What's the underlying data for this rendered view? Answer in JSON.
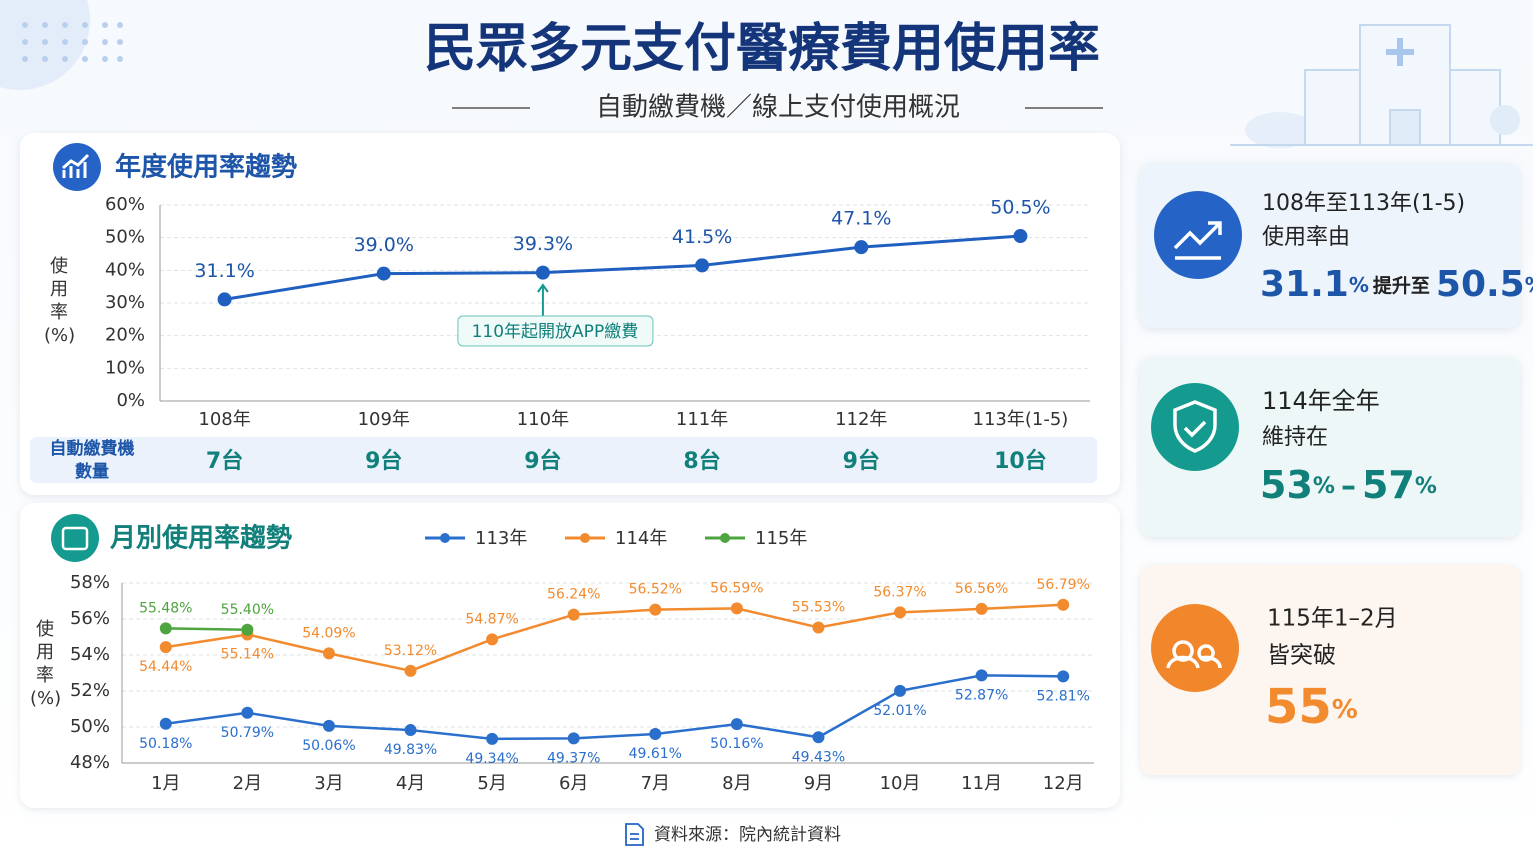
{
  "header": {
    "title": "民眾多元支付醫療費用使用率",
    "subtitle": "自動繳費機／線上支付使用概況"
  },
  "chart_data": [
    {
      "type": "line",
      "title": "年度使用率趨勢",
      "y_label": "使用率(%)",
      "categories": [
        "108年",
        "109年",
        "110年",
        "111年",
        "112年",
        "113年(1-5)"
      ],
      "values": [
        31.1,
        39.0,
        39.3,
        41.5,
        47.1,
        50.5
      ],
      "value_labels": [
        "31.1%",
        "39.0%",
        "39.3%",
        "41.5%",
        "47.1%",
        "50.5%"
      ],
      "color": "#1f5fbf",
      "ylim": [
        0,
        60
      ],
      "yticks": [
        {
          "value": 0,
          "label": "0%"
        },
        {
          "value": 10,
          "label": "10%"
        },
        {
          "value": 20,
          "label": "20%"
        },
        {
          "value": 30,
          "label": "30%"
        },
        {
          "value": 40,
          "label": "40%"
        },
        {
          "value": 50,
          "label": "50%"
        },
        {
          "value": 60,
          "label": "60%"
        }
      ],
      "grid": true,
      "annotation": {
        "text": "110年起開放APP繳費",
        "at": "110年"
      },
      "table": {
        "label_lines": [
          "自動繳費機",
          "數量"
        ],
        "values": [
          "7台",
          "9台",
          "9台",
          "8台",
          "9台",
          "10台"
        ]
      }
    },
    {
      "type": "line",
      "title": "月別使用率趨勢",
      "y_label": "使用率(%)",
      "categories": [
        "1月",
        "2月",
        "3月",
        "4月",
        "5月",
        "6月",
        "7月",
        "8月",
        "9月",
        "10月",
        "11月",
        "12月"
      ],
      "series": [
        {
          "name": "113年",
          "color": "#2b6fcc",
          "values": [
            50.18,
            50.79,
            50.06,
            49.83,
            49.34,
            49.37,
            49.61,
            50.16,
            49.43,
            52.01,
            52.87,
            52.81
          ],
          "value_labels": [
            "50.18%",
            "50.79%",
            "50.06%",
            "49.83%",
            "49.34%",
            "49.37%",
            "49.61%",
            "50.16%",
            "49.43%",
            "52.01%",
            "52.87%",
            "52.81%"
          ]
        },
        {
          "name": "114年",
          "color": "#f28a2e",
          "values": [
            54.44,
            55.14,
            54.09,
            53.12,
            54.87,
            56.24,
            56.52,
            56.59,
            55.53,
            56.37,
            56.56,
            56.79
          ],
          "value_labels": [
            "54.44%",
            "55.14%",
            "54.09%",
            "53.12%",
            "54.87%",
            "56.24%",
            "56.52%",
            "56.59%",
            "55.53%",
            "56.37%",
            "56.56%",
            "56.79%"
          ]
        },
        {
          "name": "115年",
          "color": "#4ea43f",
          "values": [
            55.48,
            55.4,
            null,
            null,
            null,
            null,
            null,
            null,
            null,
            null,
            null,
            null
          ],
          "value_labels": [
            "55.48%",
            "55.40%",
            null,
            null,
            null,
            null,
            null,
            null,
            null,
            null,
            null,
            null
          ]
        }
      ],
      "ylim": [
        48,
        58
      ],
      "yticks": [
        {
          "value": 48,
          "label": "48%"
        },
        {
          "value": 50,
          "label": "50%"
        },
        {
          "value": 52,
          "label": "52%"
        },
        {
          "value": 54,
          "label": "54%"
        },
        {
          "value": 56,
          "label": "56%"
        },
        {
          "value": 58,
          "label": "58%"
        }
      ],
      "grid": true
    }
  ],
  "cards": [
    {
      "lines": [
        "108年至113年(1-5)",
        "使用率由"
      ],
      "from": "31.1",
      "unit": "%",
      "connector": "提升至",
      "to": "50.5"
    },
    {
      "lines": [
        "114年全年",
        "維持在"
      ],
      "from": "53",
      "unit": "%",
      "connector": "–",
      "to": "57"
    },
    {
      "lines": [
        "115年1–2月",
        "皆突破"
      ],
      "from": "55",
      "unit": "%"
    }
  ],
  "source": "資料來源：院內統計資料"
}
